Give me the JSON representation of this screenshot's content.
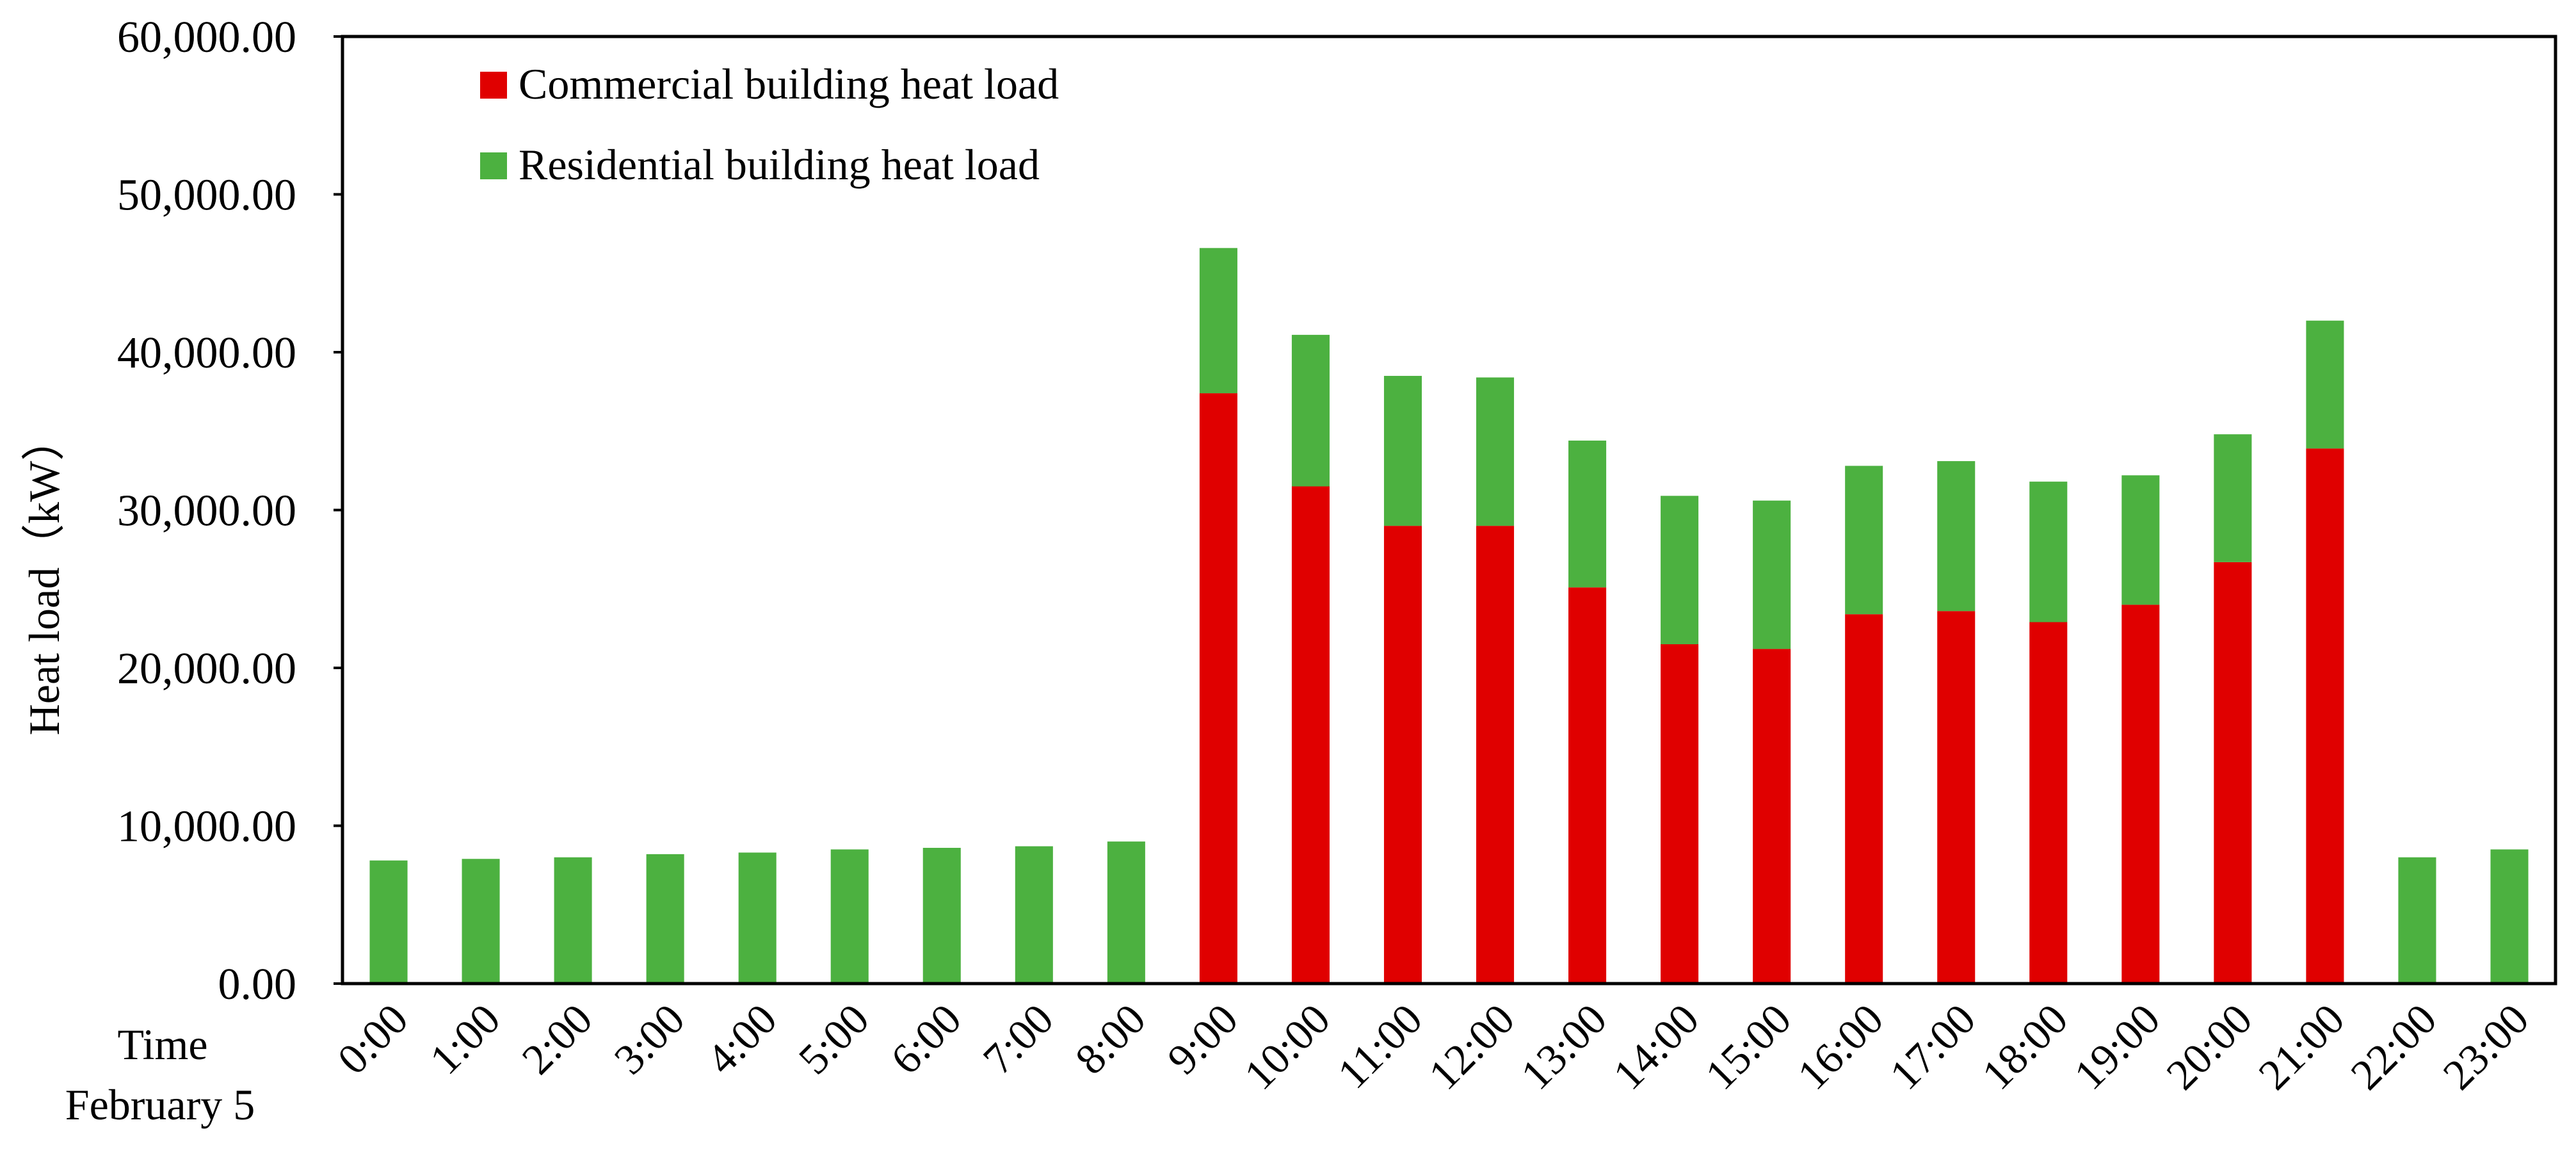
{
  "colors": {
    "commercial": "#e00000",
    "residential": "#4cb140",
    "axis": "#000000",
    "background": "#ffffff"
  },
  "chart_data": {
    "type": "bar",
    "stacked": true,
    "title": "",
    "ylabel": "Heat load（kW）",
    "xlabel": "",
    "x_caption": [
      "Time",
      "February 5"
    ],
    "ylim": [
      0,
      60000
    ],
    "yticks": [
      "0.00",
      "10,000.00",
      "20,000.00",
      "30,000.00",
      "40,000.00",
      "50,000.00",
      "60,000.00"
    ],
    "grid": false,
    "legend_position": "top-left",
    "categories": [
      "0:00",
      "1:00",
      "2:00",
      "3:00",
      "4:00",
      "5:00",
      "6:00",
      "7:00",
      "8:00",
      "9:00",
      "10:00",
      "11:00",
      "12:00",
      "13:00",
      "14:00",
      "15:00",
      "16:00",
      "17:00",
      "18:00",
      "19:00",
      "20:00",
      "21:00",
      "22:00",
      "23:00"
    ],
    "series": [
      {
        "name": "Commercial building heat load",
        "color_key": "commercial",
        "values": [
          0,
          0,
          0,
          0,
          0,
          0,
          0,
          0,
          0,
          37400,
          31500,
          29000,
          29000,
          25100,
          21500,
          21200,
          23400,
          23600,
          22900,
          24000,
          26700,
          33900,
          0,
          0
        ]
      },
      {
        "name": "Residential building heat load",
        "color_key": "residential",
        "values": [
          7800,
          7900,
          8000,
          8200,
          8300,
          8500,
          8600,
          8700,
          9000,
          9200,
          9600,
          9500,
          9400,
          9300,
          9400,
          9400,
          9400,
          9500,
          8900,
          8200,
          8100,
          8100,
          8000,
          8500
        ]
      }
    ]
  }
}
